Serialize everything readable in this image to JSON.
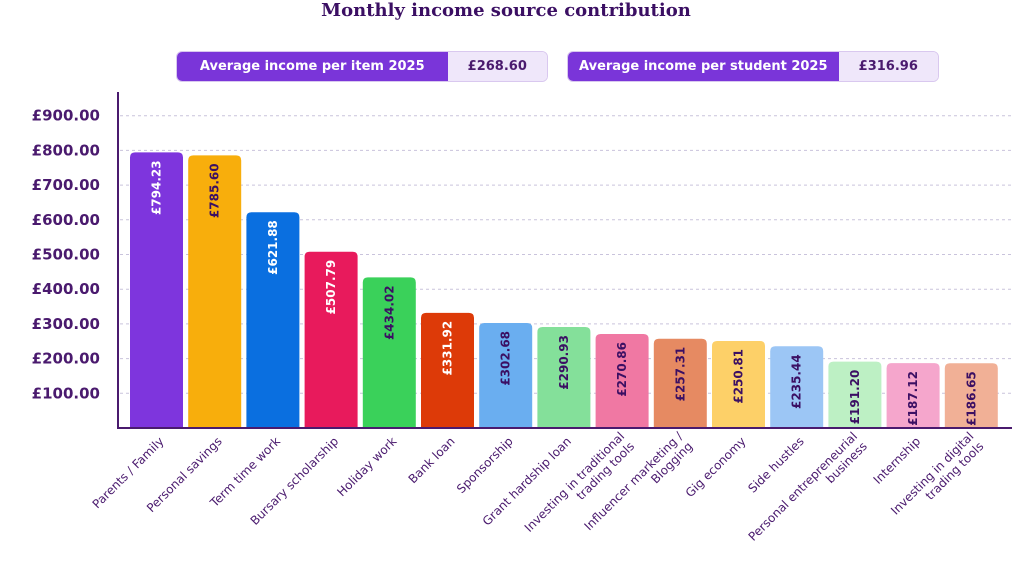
{
  "chart_data": {
    "type": "bar",
    "title": "Monthly income source contribution",
    "categories": [
      "Parents / Family",
      "Personal savings",
      "Term time work",
      "Bursary scholarship",
      "Holiday work",
      "Bank loan",
      "Sponsorship",
      "Grant hardship loan",
      "Investing in traditional trading tools",
      "Influencer marketing / Blogging",
      "Gig economy",
      "Side hustles",
      "Personal entrepreneurial business",
      "Internship",
      "Investing in digital trading tools"
    ],
    "values": [
      794.23,
      785.6,
      621.88,
      507.79,
      434.02,
      331.92,
      302.68,
      290.93,
      270.86,
      257.31,
      250.81,
      235.44,
      191.2,
      187.12,
      186.65
    ],
    "data_labels": [
      "£794.23",
      "£785.60",
      "£621.88",
      "£507.79",
      "£434.02",
      "£331.92",
      "£302.68",
      "£290.93",
      "£270.86",
      "£257.31",
      "£250.81",
      "£235.44",
      "£191.20",
      "£187.12",
      "£186.65"
    ],
    "colors": [
      "#7e35dd",
      "#f8ae0c",
      "#0a6fe0",
      "#e81a5c",
      "#3ad15a",
      "#dd3a08",
      "#6aaef0",
      "#84e09a",
      "#f078a3",
      "#e68a62",
      "#fdd068",
      "#9cc6f5",
      "#bdf0c4",
      "#f5a6cc",
      "#f1b096"
    ],
    "label_colors": [
      "#ffffff",
      "#3b0f63",
      "#ffffff",
      "#ffffff",
      "#3b0f63",
      "#ffffff",
      "#3b0f63",
      "#3b0f63",
      "#3b0f63",
      "#3b0f63",
      "#3b0f63",
      "#3b0f63",
      "#3b0f63",
      "#3b0f63",
      "#3b0f63"
    ],
    "xlabel_lines": [
      [
        "Parents / Family"
      ],
      [
        "Personal savings"
      ],
      [
        "Term time work"
      ],
      [
        "Bursary scholarship"
      ],
      [
        "Holiday work"
      ],
      [
        "Bank loan"
      ],
      [
        "Sponsorship"
      ],
      [
        "Grant hardship loan"
      ],
      [
        "Investing in traditional",
        "trading tools"
      ],
      [
        "Influencer marketing /",
        "Blogging"
      ],
      [
        "Gig economy"
      ],
      [
        "Side hustles"
      ],
      [
        "Personal entrepreneurial",
        "business"
      ],
      [
        "Internship"
      ],
      [
        "Investing in digital",
        "trading tools"
      ]
    ],
    "yticks": [
      100,
      200,
      300,
      400,
      500,
      600,
      700,
      800,
      900
    ],
    "ytick_labels": [
      "£100.00",
      "£200.00",
      "£300.00",
      "£400.00",
      "£500.00",
      "£600.00",
      "£700.00",
      "£800.00",
      "£900.00"
    ],
    "ylim": [
      0,
      900
    ],
    "grid": true,
    "xlabel": "",
    "ylabel": ""
  },
  "summary": {
    "avg_item_label": "Average income per item 2025",
    "avg_item_value": "£268.60",
    "avg_student_label": "Average income per student 2025",
    "avg_student_value": "£316.96"
  },
  "colors": {
    "axis": "#4a1a6e",
    "grid": "#c9c3dc",
    "pill_label_bg": "#7a35d9",
    "pill_value_bg": "#efe7fa"
  }
}
